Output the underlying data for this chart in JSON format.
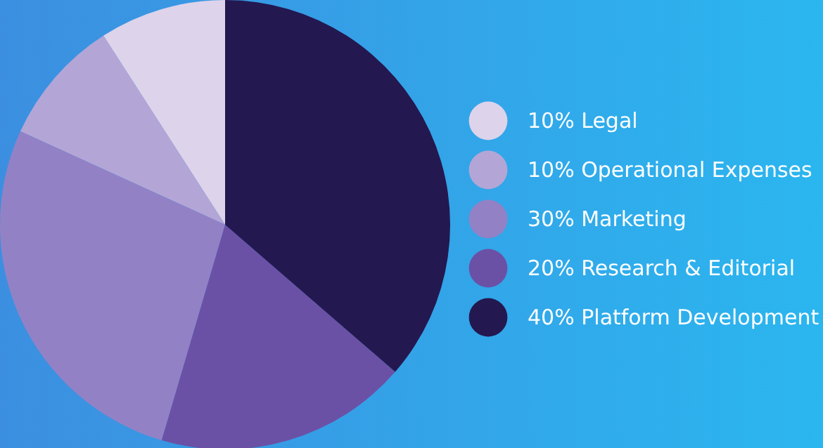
{
  "chart_data": {
    "type": "pie",
    "categories": [
      "10% Legal",
      "10% Operational Expenses",
      "30% Marketing",
      "20% Research & Editorial",
      "40% Platform Development"
    ],
    "values": [
      10,
      10,
      30,
      20,
      40
    ],
    "colors": [
      "#ddd3ea",
      "#b3a6d6",
      "#9381c6",
      "#6b51a5",
      "#241850"
    ],
    "legend": "right"
  }
}
